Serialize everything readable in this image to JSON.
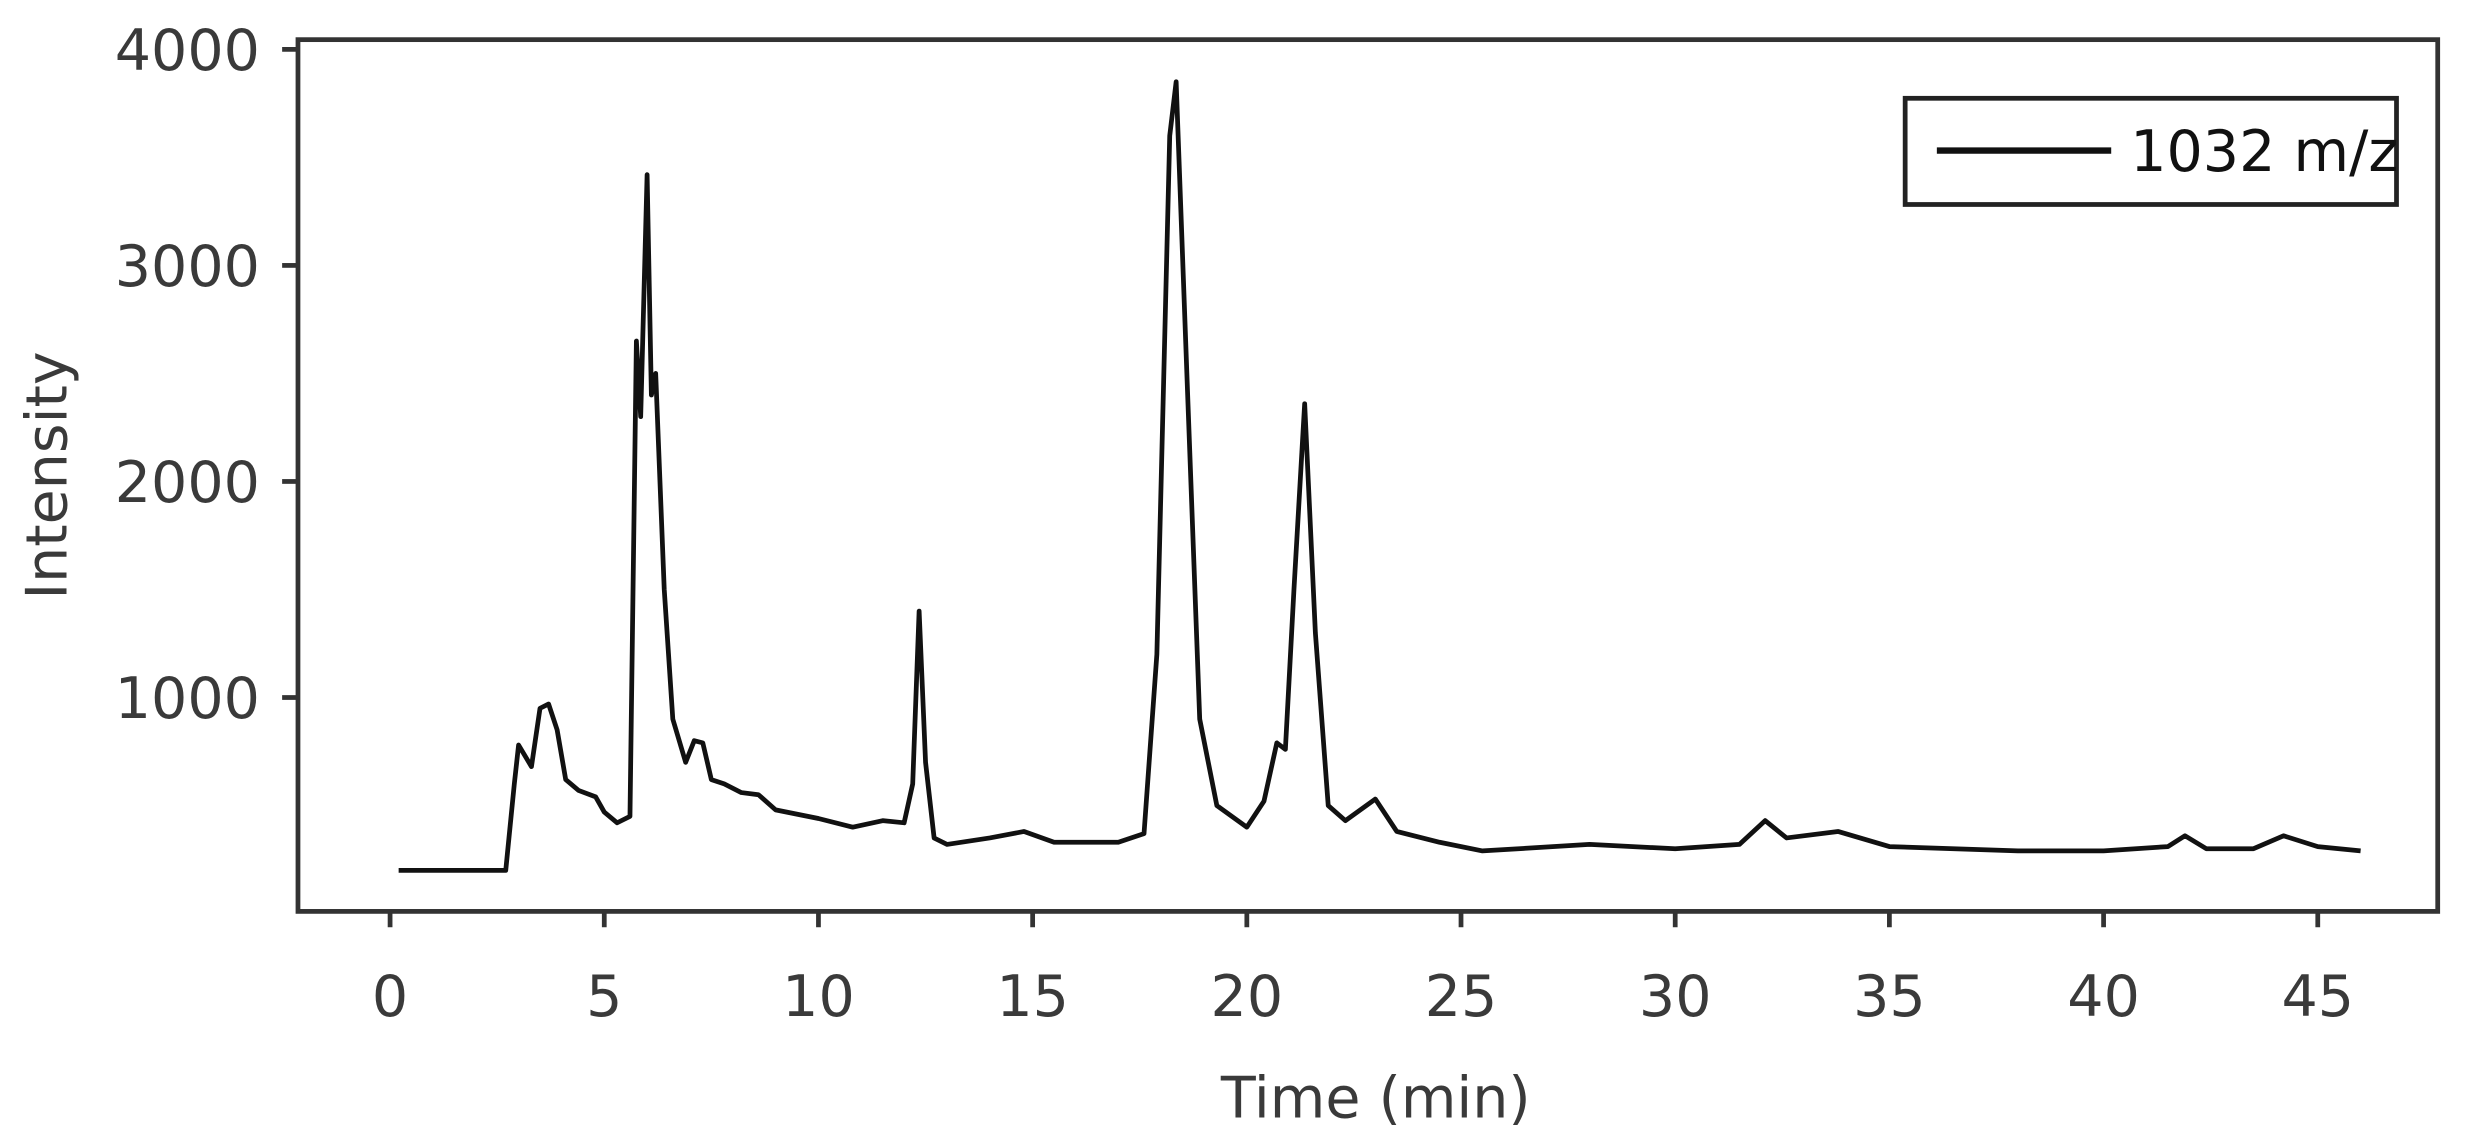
{
  "chart_data": {
    "type": "line",
    "x_label": "Time (min)",
    "y_label": "Intensity",
    "xlim": [
      -2.15,
      47.8
    ],
    "ylim": [
      10,
      4045
    ],
    "xticks": [
      0,
      5,
      10,
      15,
      20,
      25,
      30,
      35,
      40,
      45
    ],
    "yticks": [
      1000,
      2000,
      3000,
      4000
    ],
    "legend": "upper right",
    "x": [
      0.2,
      2.7,
      2.9,
      3.0,
      3.3,
      3.5,
      3.7,
      3.9,
      4.1,
      4.4,
      4.8,
      5.0,
      5.3,
      5.6,
      5.75,
      5.85,
      6.0,
      6.1,
      6.2,
      6.4,
      6.6,
      6.9,
      7.1,
      7.3,
      7.5,
      7.8,
      8.2,
      8.6,
      9.0,
      10,
      10.8,
      11.5,
      12.0,
      12.2,
      12.35,
      12.5,
      12.7,
      13,
      14,
      14.8,
      15.5,
      17,
      17.6,
      17.9,
      18.2,
      18.35,
      18.6,
      18.9,
      19.3,
      20,
      20.4,
      20.7,
      20.9,
      21.1,
      21.35,
      21.6,
      21.9,
      22.3,
      23,
      23.5,
      24.5,
      25.5,
      28,
      30,
      31.5,
      32.1,
      32.6,
      33.8,
      35,
      38,
      40,
      41.5,
      41.9,
      42.4,
      43.5,
      44.2,
      45,
      46
    ],
    "series": [
      {
        "name": "1032 m/z",
        "color": "#111111",
        "values": [
          200,
          200,
          600,
          780,
          680,
          950,
          970,
          850,
          620,
          570,
          540,
          470,
          420,
          450,
          2650,
          2300,
          3420,
          2400,
          2500,
          1500,
          900,
          700,
          800,
          790,
          620,
          600,
          560,
          550,
          480,
          440,
          400,
          430,
          420,
          600,
          1400,
          700,
          350,
          320,
          350,
          380,
          330,
          330,
          370,
          1200,
          3600,
          3850,
          2500,
          900,
          500,
          400,
          520,
          790,
          760,
          1500,
          2360,
          1300,
          500,
          430,
          530,
          380,
          330,
          290,
          320,
          300,
          320,
          430,
          350,
          380,
          310,
          290,
          290,
          310,
          360,
          300,
          300,
          360,
          310,
          290
        ]
      }
    ]
  }
}
